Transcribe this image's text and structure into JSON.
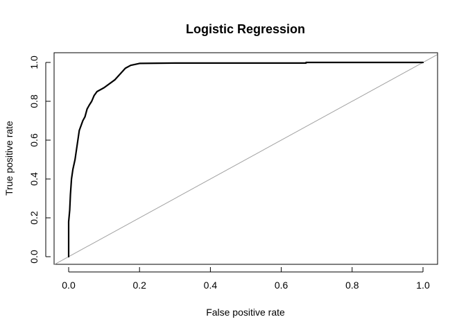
{
  "chart_data": {
    "type": "line",
    "title": "Logistic Regression",
    "xlabel": "False positive rate",
    "ylabel": "True positive rate",
    "xlim": [
      0,
      1
    ],
    "ylim": [
      0,
      1
    ],
    "x_ticks": [
      "0.0",
      "0.2",
      "0.4",
      "0.6",
      "0.8",
      "1.0"
    ],
    "y_ticks": [
      "0.0",
      "0.2",
      "0.4",
      "0.6",
      "0.8",
      "1.0"
    ],
    "grid": false,
    "legend": "none",
    "series": [
      {
        "role": "roc",
        "color": "#000000",
        "points": [
          [
            0.0,
            0.0
          ],
          [
            0.0,
            0.18
          ],
          [
            0.003,
            0.24
          ],
          [
            0.005,
            0.32
          ],
          [
            0.008,
            0.4
          ],
          [
            0.012,
            0.45
          ],
          [
            0.018,
            0.5
          ],
          [
            0.022,
            0.55
          ],
          [
            0.026,
            0.6
          ],
          [
            0.03,
            0.65
          ],
          [
            0.036,
            0.68
          ],
          [
            0.04,
            0.7
          ],
          [
            0.046,
            0.72
          ],
          [
            0.052,
            0.76
          ],
          [
            0.058,
            0.78
          ],
          [
            0.065,
            0.8
          ],
          [
            0.072,
            0.83
          ],
          [
            0.08,
            0.85
          ],
          [
            0.1,
            0.87
          ],
          [
            0.13,
            0.91
          ],
          [
            0.15,
            0.95
          ],
          [
            0.16,
            0.97
          ],
          [
            0.175,
            0.985
          ],
          [
            0.2,
            0.995
          ],
          [
            0.3,
            0.997
          ],
          [
            0.67,
            0.997
          ],
          [
            0.67,
            1.0
          ],
          [
            1.0,
            1.0
          ]
        ]
      },
      {
        "role": "reference-diagonal",
        "color": "#a0a0a0",
        "points": [
          [
            0,
            0
          ],
          [
            1,
            1
          ]
        ]
      }
    ]
  }
}
